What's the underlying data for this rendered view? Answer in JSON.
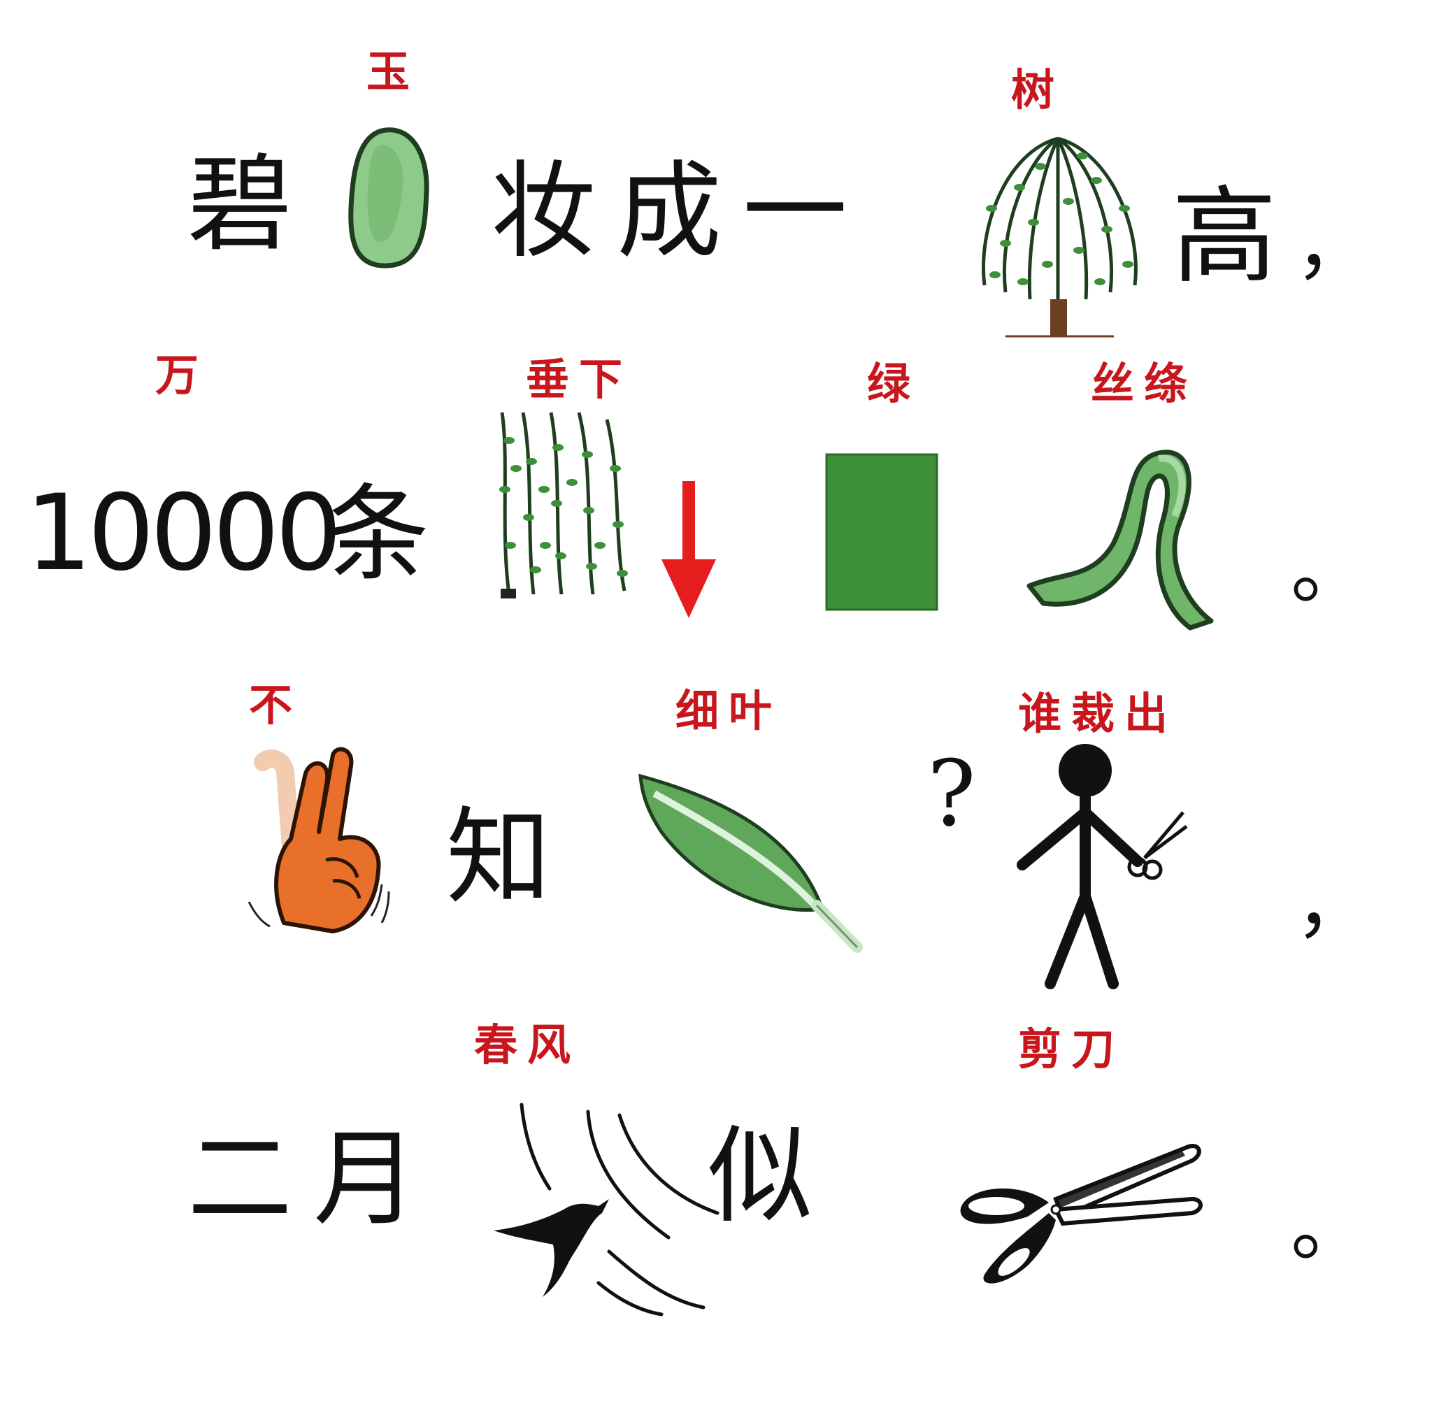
{
  "colors": {
    "hint": "#c8161d",
    "text": "#111111",
    "green": "#3e8f3a",
    "light_green": "#8ecb8a",
    "hand": "#e8702a",
    "arrow": "#e51d1d"
  },
  "line1": {
    "hint_jade": "玉",
    "hint_tree": "树",
    "w1": "碧",
    "w2": "妆成一",
    "w3": "高",
    "p": "，",
    "icons": [
      "jade-icon",
      "willow-tree-icon"
    ]
  },
  "line2": {
    "hint_wan": "万",
    "hint_down": "垂下",
    "hint_green": "绿",
    "hint_silk": "丝绦",
    "num": "10000",
    "w1": "条",
    "p": "。",
    "icons": [
      "willow-branches-icon",
      "down-arrow-icon",
      "green-rectangle-icon",
      "ribbon-icon"
    ]
  },
  "line3": {
    "hint_not": "不",
    "hint_leaf": "细叶",
    "hint_who": "谁裁出",
    "w1": "知",
    "q": "?",
    "p": "，",
    "icons": [
      "waving-hand-icon",
      "leaf-icon",
      "question-mark-icon",
      "stick-figure-with-scissors-icon"
    ]
  },
  "line4": {
    "hint_wind": "春风",
    "hint_scissors": "剪刀",
    "w1": "二月",
    "w2": "似",
    "p": "。",
    "icons": [
      "swallow-wind-icon",
      "scissors-icon"
    ]
  }
}
